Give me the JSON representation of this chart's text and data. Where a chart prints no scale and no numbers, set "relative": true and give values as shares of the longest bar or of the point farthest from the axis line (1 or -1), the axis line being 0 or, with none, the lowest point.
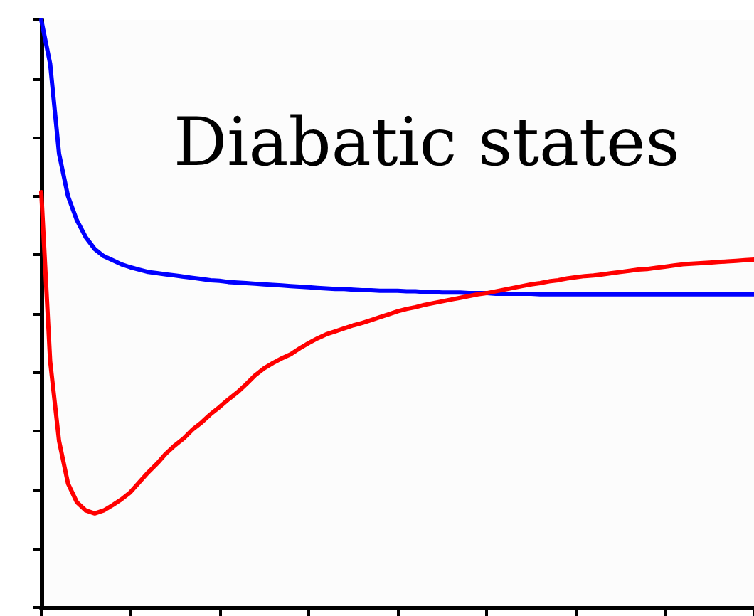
{
  "chart_data": {
    "type": "line",
    "title": "Diabatic states",
    "relative": true,
    "categories": [
      null,
      null,
      null,
      null,
      null,
      null,
      null,
      null,
      null,
      null,
      null,
      null,
      null,
      null,
      null,
      null,
      null,
      null,
      null,
      null,
      null,
      null,
      null,
      null,
      null,
      null,
      null,
      null,
      null,
      null,
      null,
      null,
      null,
      null,
      null,
      null,
      null,
      null,
      null,
      null,
      null,
      null,
      null,
      null,
      null,
      null,
      null,
      null,
      null,
      null,
      null,
      null,
      null,
      null,
      null,
      null,
      null,
      null,
      null,
      null,
      null,
      null,
      null,
      null,
      null,
      null,
      null,
      null,
      null,
      null,
      null,
      null,
      null,
      null,
      null,
      null,
      null,
      null,
      null,
      null,
      null
    ],
    "series": [
      {
        "color": "#0000ff",
        "values": [
          1.0,
          0.925,
          0.772,
          0.7,
          0.659,
          0.63,
          0.61,
          0.598,
          0.591,
          0.584,
          0.579,
          0.575,
          0.571,
          0.569,
          0.567,
          0.565,
          0.563,
          0.561,
          0.559,
          0.557,
          0.556,
          0.554,
          0.553,
          0.552,
          0.551,
          0.55,
          0.549,
          0.548,
          0.547,
          0.546,
          0.545,
          0.544,
          0.543,
          0.542,
          0.542,
          0.541,
          0.54,
          0.54,
          0.539,
          0.539,
          0.539,
          0.538,
          0.538,
          0.537,
          0.537,
          0.536,
          0.536,
          0.536,
          0.535,
          0.535,
          0.535,
          0.534,
          0.534,
          0.534,
          0.534,
          0.534,
          0.533,
          0.533,
          0.533,
          0.533,
          0.533,
          0.533,
          0.533,
          0.533,
          0.533,
          0.533,
          0.533,
          0.533,
          0.533,
          0.533,
          0.533,
          0.533,
          0.533,
          0.533,
          0.533,
          0.533,
          0.533,
          0.533,
          0.533,
          0.533,
          0.533
        ]
      },
      {
        "color": "#ff0000",
        "values": [
          0.707,
          0.419,
          0.283,
          0.211,
          0.179,
          0.165,
          0.16,
          0.165,
          0.174,
          0.184,
          0.196,
          0.213,
          0.23,
          0.245,
          0.262,
          0.276,
          0.288,
          0.303,
          0.315,
          0.329,
          0.341,
          0.354,
          0.366,
          0.38,
          0.395,
          0.407,
          0.416,
          0.424,
          0.431,
          0.441,
          0.45,
          0.458,
          0.465,
          0.47,
          0.475,
          0.48,
          0.484,
          0.489,
          0.494,
          0.499,
          0.504,
          0.508,
          0.511,
          0.515,
          0.518,
          0.521,
          0.524,
          0.527,
          0.53,
          0.533,
          0.535,
          0.538,
          0.541,
          0.544,
          0.547,
          0.55,
          0.552,
          0.555,
          0.557,
          0.56,
          0.562,
          0.564,
          0.565,
          0.567,
          0.569,
          0.571,
          0.573,
          0.575,
          0.576,
          0.578,
          0.58,
          0.582,
          0.584,
          0.585,
          0.586,
          0.587,
          0.588,
          0.589,
          0.59,
          0.591,
          0.592
        ]
      }
    ],
    "line_style": "solid",
    "grid": false,
    "tick_labels": false
  }
}
